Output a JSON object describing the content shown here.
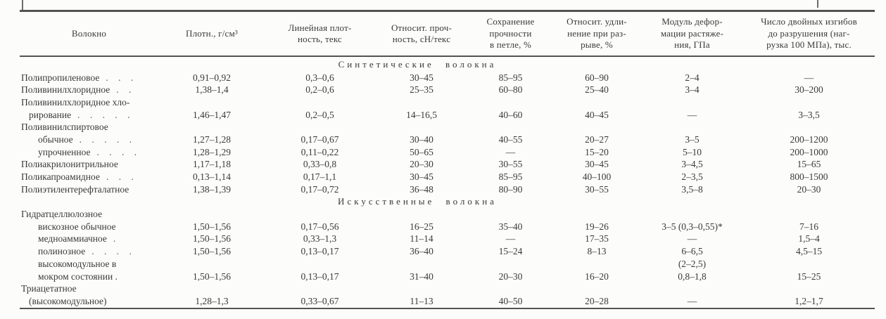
{
  "table": {
    "header": {
      "columns": [
        {
          "label": "Волокно"
        },
        {
          "label": "Плотн., г/см³"
        },
        {
          "label": "Линейная плот-\nность, текс"
        },
        {
          "label": "Относит. проч-\nность, сН/текс"
        },
        {
          "label": "Сохранение\nпрочности\nв петле, %"
        },
        {
          "label": "Относит. удли-\nнение при раз-\nрыве, %"
        },
        {
          "label": "Модуль дефор-\nмации растяже-\nния, ГПа"
        },
        {
          "label": "Число двойных изгибов\nдо разрушения (наг-\nрузка 100 МПа), тыс."
        }
      ]
    },
    "rows": [
      {
        "section": "Синтетические волокна"
      },
      {
        "label": "Полипропиленовое",
        "indent": 0,
        "dots": ". . .",
        "values": [
          "0,91–0,92",
          "0,3–0,6",
          "30–45",
          "85–95",
          "60–90",
          "2–4",
          "—"
        ]
      },
      {
        "label": "Поливинилхлоридное",
        "indent": 0,
        "dots": ". .",
        "values": [
          "1,38–1,4",
          "0,2–0,6",
          "25–35",
          "60–80",
          "25–40",
          "3–4",
          "30–200"
        ]
      },
      {
        "label": "Поливинилхлоридное хло-",
        "indent": 0,
        "dots": "",
        "values": [
          "",
          "",
          "",
          "",
          "",
          "",
          ""
        ]
      },
      {
        "label": "рирование",
        "indent": 1,
        "dots": ". . . . .",
        "values": [
          "1,46–1,47",
          "0,2–0,5",
          "14–16,5",
          "40–60",
          "40–45",
          "—",
          "3–3,5"
        ]
      },
      {
        "label": "Поливинилспиртовое",
        "indent": 0,
        "dots": "",
        "values": [
          "",
          "",
          "",
          "",
          "",
          "",
          ""
        ]
      },
      {
        "label": "обычное",
        "indent": 2,
        "dots": ". . . . .",
        "values": [
          "1,27–1,28",
          "0,17–0,67",
          "30–40",
          "40–55",
          "20–27",
          "3–5",
          "200–1200"
        ]
      },
      {
        "label": "упрочненное",
        "indent": 2,
        "dots": ". . . .",
        "values": [
          "1,28–1,29",
          "0,11–0,22",
          "50–65",
          "—",
          "15–20",
          "5–10",
          "200–1000"
        ]
      },
      {
        "label": "Полиакрилонитрильное",
        "indent": 0,
        "dots": "",
        "values": [
          "1,17–1,18",
          "0,33–0,8",
          "20–30",
          "30–55",
          "30–45",
          "3–4,5",
          "15–65"
        ]
      },
      {
        "label": "Поликапроамидное",
        "indent": 0,
        "dots": ". . .",
        "values": [
          "0,13–1,14",
          "0,17–1,1",
          "30–45",
          "85–95",
          "40–100",
          "2–3,5",
          "800–1500"
        ]
      },
      {
        "label": "Полиэтилентерефталатное",
        "indent": 0,
        "dots": "",
        "values": [
          "1,38–1,39",
          "0,17–0,72",
          "36–48",
          "80–90",
          "30–55",
          "3,5–8",
          "20–30"
        ]
      },
      {
        "section": "Искусственные волокна"
      },
      {
        "label": "Гидратцеллюлозное",
        "indent": 0,
        "dots": "",
        "values": [
          "",
          "",
          "",
          "",
          "",
          "",
          ""
        ]
      },
      {
        "label": "вискозное обычное",
        "indent": 2,
        "dots": "",
        "values": [
          "1,50–1,56",
          "0,17–0,56",
          "16–25",
          "35–40",
          "19–26",
          "3–5 (0,3–0,55)*",
          "7–16"
        ]
      },
      {
        "label": "медноаммиачное",
        "indent": 2,
        "dots": ".",
        "values": [
          "1,50–1,56",
          "0,33–1,3",
          "11–14",
          "—",
          "17–35",
          "—",
          "1,5–4"
        ]
      },
      {
        "label": "полинозное",
        "indent": 2,
        "dots": ". . . .",
        "values": [
          "1,50–1,56",
          "0,13–0,17",
          "36–40",
          "15–24",
          "8–13",
          "6–6,5",
          "4,5–15"
        ]
      },
      {
        "label": "высокомодульное в",
        "indent": 2,
        "dots": "",
        "values": [
          "",
          "",
          "",
          "",
          "",
          "(2–2,5)",
          ""
        ]
      },
      {
        "label": "мокром состоянии .",
        "indent": 2,
        "dots": "",
        "values": [
          "1,50–1,56",
          "0,13–0,17",
          "31–40",
          "20–30",
          "16–20",
          "0,8–1,8",
          "15–25"
        ]
      },
      {
        "label": "Триацетатное",
        "indent": 0,
        "dots": "",
        "values": [
          "",
          "",
          "",
          "",
          "",
          "",
          ""
        ]
      },
      {
        "label": "(высокомодульное)",
        "indent": 1,
        "dots": "",
        "values": [
          "1,28–1,3",
          "0,33–0,67",
          "11–13",
          "40–50",
          "20–28",
          "—",
          "1,2–1,7"
        ]
      }
    ]
  }
}
